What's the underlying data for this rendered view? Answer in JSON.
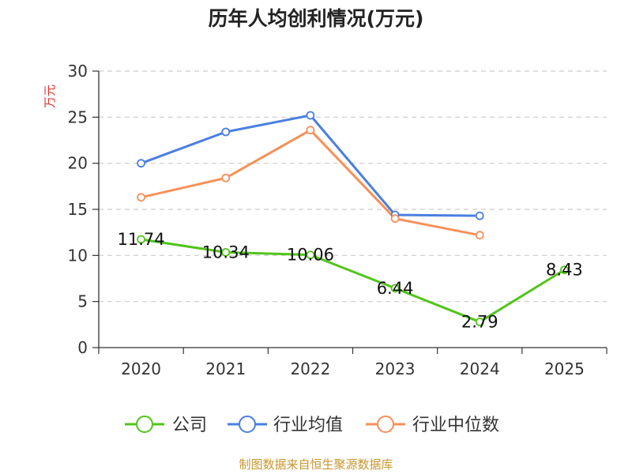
{
  "chart_data": {
    "type": "line",
    "title": "历年人均创利情况(万元)",
    "ylabel": "万元",
    "xlabel": "",
    "categories": [
      "2020",
      "2021",
      "2022",
      "2023",
      "2024",
      "2025"
    ],
    "ylim": [
      0,
      30
    ],
    "yticks": [
      0,
      5,
      10,
      15,
      20,
      25,
      30
    ],
    "grid": true,
    "legend_position": "bottom",
    "series": [
      {
        "name": "公司",
        "color": "#52c41a",
        "values": [
          11.74,
          10.34,
          10.06,
          6.44,
          2.79,
          8.43
        ],
        "labels": [
          "11.74",
          "10.34",
          "10.06",
          "6.44",
          "2.79",
          "8.43"
        ]
      },
      {
        "name": "行业均值",
        "color": "#4a7fe0",
        "values": [
          20.0,
          23.4,
          25.2,
          14.4,
          14.3,
          null
        ]
      },
      {
        "name": "行业中位数",
        "color": "#f79058",
        "values": [
          16.3,
          18.4,
          23.6,
          14.0,
          12.2,
          null
        ]
      }
    ]
  },
  "source_text": "制图数据来自恒生聚源数据库",
  "colors": {
    "axis": "#333333",
    "grid": "#cccccc",
    "ylabel": "#e03030",
    "source": "#c8962e"
  }
}
